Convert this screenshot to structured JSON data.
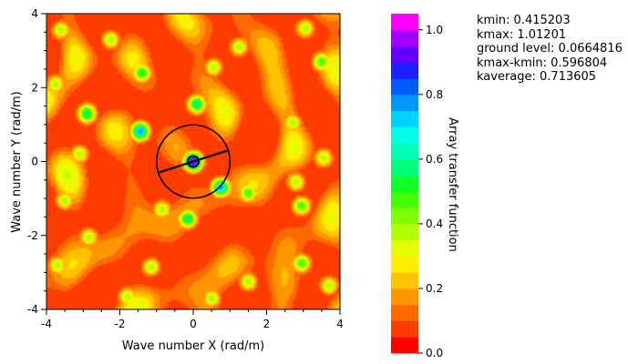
{
  "chart_data": {
    "type": "heatmap",
    "title": "",
    "xlabel": "Wave number X (rad/m)",
    "ylabel": "Wave number Y (rad/m)",
    "xlim": [
      -4,
      4
    ],
    "ylim": [
      -4,
      4
    ],
    "x_ticks": [
      -4,
      -2,
      0,
      2,
      4
    ],
    "y_ticks": [
      -4,
      -2,
      0,
      2,
      4
    ],
    "x_tick_labels": [
      "-4",
      "-2",
      "0",
      "2",
      "4"
    ],
    "y_tick_labels": [
      "-4",
      "-2",
      "0",
      "2",
      "4"
    ],
    "colorbar": {
      "label": "Array transfer function",
      "range": [
        0.0,
        1.05
      ],
      "ticks": [
        0.0,
        0.2,
        0.4,
        0.6,
        0.8,
        1.0
      ],
      "tick_labels": [
        "0.0",
        "0.2",
        "0.4",
        "0.6",
        "0.8",
        "1.0"
      ],
      "levels": 21,
      "colors": [
        "#ff0000",
        "#ff3c00",
        "#ff6a00",
        "#ff9600",
        "#ffc200",
        "#ffee00",
        "#e4ff00",
        "#b4ff00",
        "#7dff00",
        "#46ff00",
        "#0fff28",
        "#00ff78",
        "#00ffb4",
        "#00ffe6",
        "#00d2ff",
        "#0096ff",
        "#005aff",
        "#1e1eff",
        "#6400ff",
        "#a000ff",
        "#ff00ff"
      ]
    },
    "background_level": 0.08,
    "peaks": [
      {
        "x": 0.0,
        "y": 0.0,
        "value": 1.01
      },
      {
        "x": -1.45,
        "y": 0.82,
        "value": 0.8
      },
      {
        "x": 0.75,
        "y": -0.7,
        "value": 0.78
      },
      {
        "x": 0.1,
        "y": 1.55,
        "value": 0.62
      },
      {
        "x": -1.4,
        "y": 2.4,
        "value": 0.55
      },
      {
        "x": 3.5,
        "y": 2.7,
        "value": 0.5
      },
      {
        "x": -2.9,
        "y": 1.3,
        "value": 0.6
      },
      {
        "x": -0.15,
        "y": -1.55,
        "value": 0.6
      },
      {
        "x": 1.5,
        "y": -0.85,
        "value": 0.5
      },
      {
        "x": 2.95,
        "y": -1.2,
        "value": 0.5
      },
      {
        "x": 2.95,
        "y": -2.75,
        "value": 0.5
      },
      {
        "x": -3.75,
        "y": 2.1,
        "value": 0.4
      },
      {
        "x": -3.1,
        "y": 0.2,
        "value": 0.4
      },
      {
        "x": -2.25,
        "y": 3.3,
        "value": 0.4
      },
      {
        "x": 1.25,
        "y": 3.1,
        "value": 0.4
      },
      {
        "x": 0.55,
        "y": 2.55,
        "value": 0.4
      },
      {
        "x": -2.85,
        "y": -2.05,
        "value": 0.4
      },
      {
        "x": 2.7,
        "y": 1.05,
        "value": 0.4
      },
      {
        "x": -1.15,
        "y": -2.85,
        "value": 0.4
      },
      {
        "x": -3.5,
        "y": -1.05,
        "value": 0.4
      },
      {
        "x": -0.85,
        "y": -1.3,
        "value": 0.4
      },
      {
        "x": 3.55,
        "y": 0.1,
        "value": 0.4
      },
      {
        "x": -3.7,
        "y": -2.8,
        "value": 0.4
      },
      {
        "x": 1.5,
        "y": -3.25,
        "value": 0.4
      },
      {
        "x": 3.7,
        "y": -3.35,
        "value": 0.4
      },
      {
        "x": -1.8,
        "y": -3.65,
        "value": 0.4
      },
      {
        "x": 0.5,
        "y": -3.7,
        "value": 0.4
      },
      {
        "x": 2.8,
        "y": -0.55,
        "value": 0.4
      },
      {
        "x": 3.05,
        "y": 3.6,
        "value": 0.4
      },
      {
        "x": -3.6,
        "y": 3.55,
        "value": 0.4
      }
    ],
    "circle_radius": 1.0,
    "line_segment": [
      [
        -0.95,
        -0.3
      ],
      [
        0.95,
        0.3
      ]
    ]
  },
  "stats": {
    "kmin": "kmin: 0.415203",
    "kmax": "kmax: 1.01201",
    "ground_level": "ground level: 0.0664816",
    "kmax_kmin": "kmax-kmin: 0.596804",
    "kaverage": "kaverage: 0.713605"
  }
}
